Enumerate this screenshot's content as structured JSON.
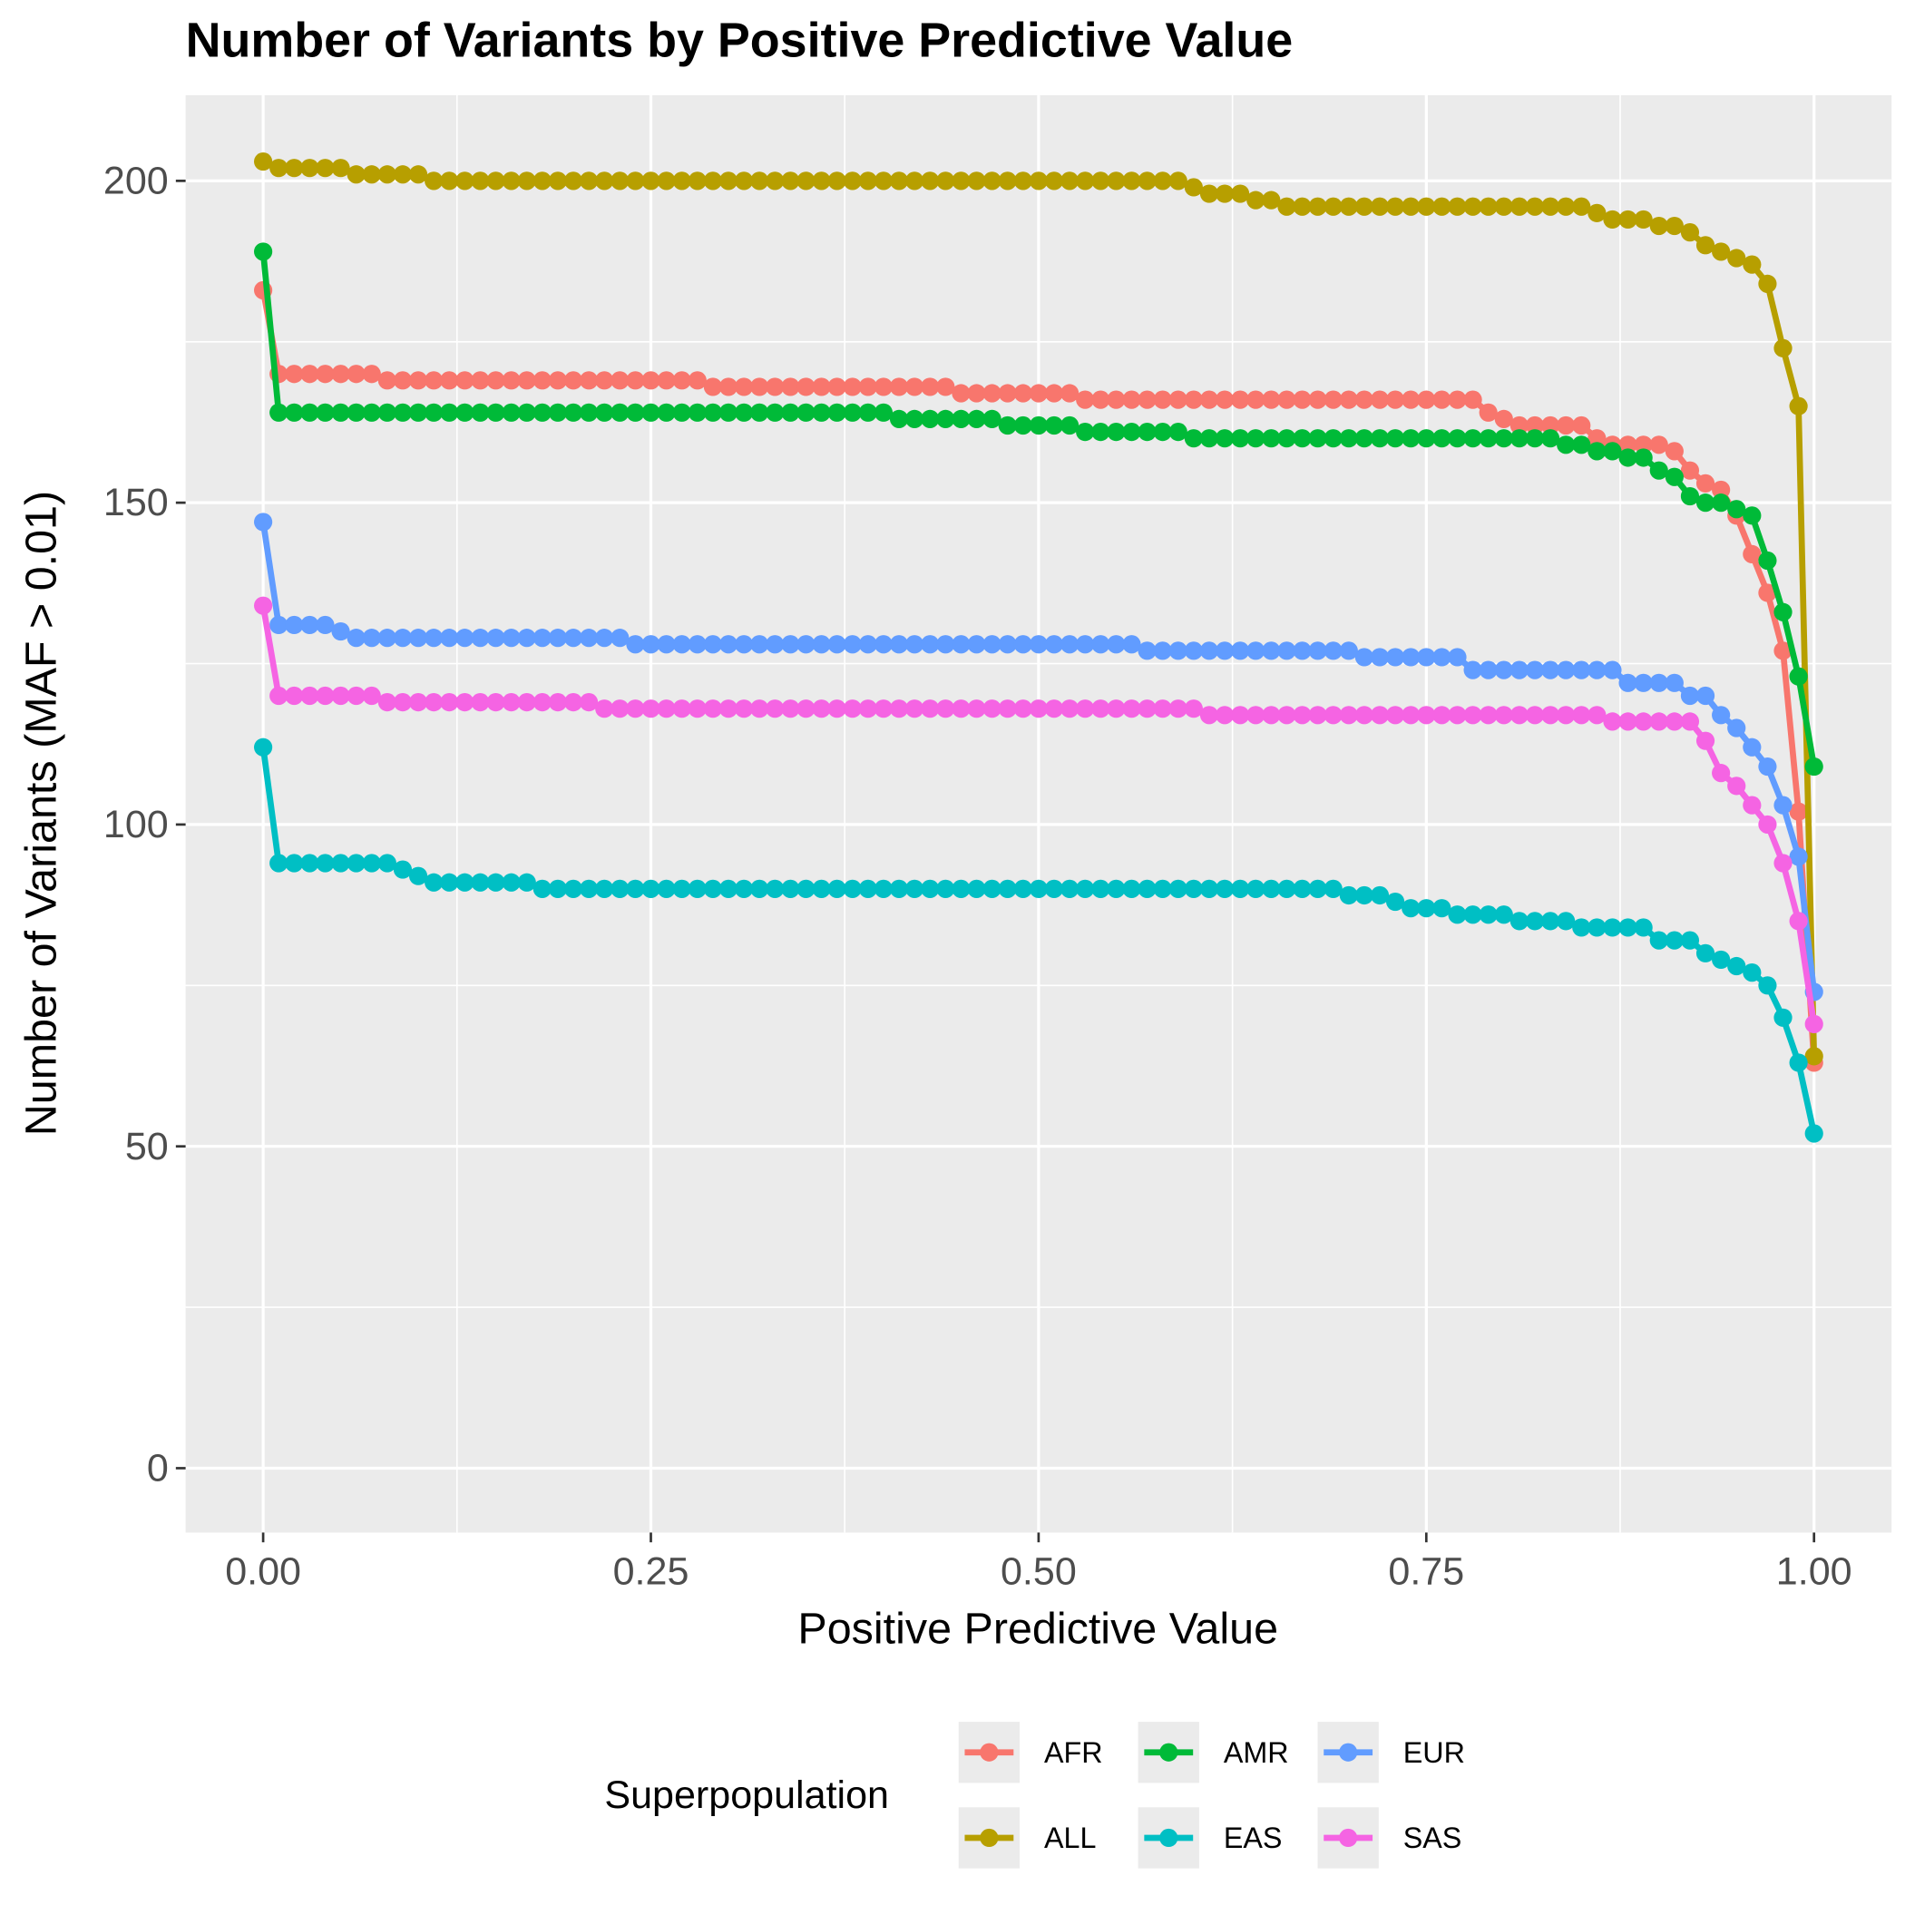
{
  "chart_data": {
    "type": "line",
    "title": "Number of Variants by Positive Predictive Value",
    "x_label": "Positive Predictive Value",
    "y_label": "Number of Variants (MAF > 0.01)",
    "legend_title": "Superpopulation",
    "legend_position": "bottom",
    "grid": true,
    "xlim": [
      -0.05,
      1.05
    ],
    "ylim": [
      -10,
      213.3
    ],
    "xticks": [
      {
        "value": 0,
        "label": "0.00"
      },
      {
        "value": 0.25,
        "label": "0.25"
      },
      {
        "value": 0.5,
        "label": "0.50"
      },
      {
        "value": 0.75,
        "label": "0.75"
      },
      {
        "value": 1,
        "label": "1.00"
      }
    ],
    "yticks": [
      0,
      50,
      100,
      150,
      200
    ],
    "x": [
      0,
      0.01,
      0.02,
      0.03,
      0.04,
      0.05,
      0.06,
      0.07,
      0.08,
      0.09,
      0.1,
      0.11,
      0.12,
      0.13,
      0.14,
      0.15,
      0.16,
      0.17,
      0.18,
      0.19,
      0.2,
      0.21,
      0.22,
      0.23,
      0.24,
      0.25,
      0.26,
      0.27,
      0.28,
      0.29,
      0.3,
      0.31,
      0.32,
      0.33,
      0.34,
      0.35,
      0.36,
      0.37,
      0.38,
      0.39,
      0.4,
      0.41,
      0.42,
      0.43,
      0.44,
      0.45,
      0.46,
      0.47,
      0.48,
      0.49,
      0.5,
      0.51,
      0.52,
      0.53,
      0.54,
      0.55,
      0.56,
      0.57,
      0.58,
      0.59,
      0.6,
      0.61,
      0.62,
      0.63,
      0.64,
      0.65,
      0.66,
      0.67,
      0.68,
      0.69,
      0.7,
      0.71,
      0.72,
      0.73,
      0.74,
      0.75,
      0.76,
      0.77,
      0.78,
      0.79,
      0.8,
      0.81,
      0.82,
      0.83,
      0.84,
      0.85,
      0.86,
      0.87,
      0.88,
      0.89,
      0.9,
      0.91,
      0.92,
      0.93,
      0.94,
      0.95,
      0.96,
      0.97,
      0.98,
      0.99,
      1
    ],
    "series": [
      {
        "name": "AFR",
        "color": "#F8766D",
        "values": [
          183,
          170,
          170,
          170,
          170,
          170,
          170,
          170,
          169,
          169,
          169,
          169,
          169,
          169,
          169,
          169,
          169,
          169,
          169,
          169,
          169,
          169,
          169,
          169,
          169,
          169,
          169,
          169,
          169,
          168,
          168,
          168,
          168,
          168,
          168,
          168,
          168,
          168,
          168,
          168,
          168,
          168,
          168,
          168,
          168,
          167,
          167,
          167,
          167,
          167,
          167,
          167,
          167,
          166,
          166,
          166,
          166,
          166,
          166,
          166,
          166,
          166,
          166,
          166,
          166,
          166,
          166,
          166,
          166,
          166,
          166,
          166,
          166,
          166,
          166,
          166,
          166,
          166,
          166,
          164,
          163,
          162,
          162,
          162,
          162,
          162,
          160,
          159,
          159,
          159,
          159,
          158,
          155,
          153,
          152,
          148,
          142,
          136,
          127,
          102,
          63
        ]
      },
      {
        "name": "ALL",
        "color": "#B79F00",
        "values": [
          203,
          202,
          202,
          202,
          202,
          202,
          201,
          201,
          201,
          201,
          201,
          200,
          200,
          200,
          200,
          200,
          200,
          200,
          200,
          200,
          200,
          200,
          200,
          200,
          200,
          200,
          200,
          200,
          200,
          200,
          200,
          200,
          200,
          200,
          200,
          200,
          200,
          200,
          200,
          200,
          200,
          200,
          200,
          200,
          200,
          200,
          200,
          200,
          200,
          200,
          200,
          200,
          200,
          200,
          200,
          200,
          200,
          200,
          200,
          200,
          199,
          198,
          198,
          198,
          197,
          197,
          196,
          196,
          196,
          196,
          196,
          196,
          196,
          196,
          196,
          196,
          196,
          196,
          196,
          196,
          196,
          196,
          196,
          196,
          196,
          196,
          195,
          194,
          194,
          194,
          193,
          193,
          192,
          190,
          189,
          188,
          187,
          184,
          174,
          165,
          64
        ]
      },
      {
        "name": "AMR",
        "color": "#00BA38",
        "values": [
          189,
          164,
          164,
          164,
          164,
          164,
          164,
          164,
          164,
          164,
          164,
          164,
          164,
          164,
          164,
          164,
          164,
          164,
          164,
          164,
          164,
          164,
          164,
          164,
          164,
          164,
          164,
          164,
          164,
          164,
          164,
          164,
          164,
          164,
          164,
          164,
          164,
          164,
          164,
          164,
          164,
          163,
          163,
          163,
          163,
          163,
          163,
          163,
          162,
          162,
          162,
          162,
          162,
          161,
          161,
          161,
          161,
          161,
          161,
          161,
          160,
          160,
          160,
          160,
          160,
          160,
          160,
          160,
          160,
          160,
          160,
          160,
          160,
          160,
          160,
          160,
          160,
          160,
          160,
          160,
          160,
          160,
          160,
          160,
          159,
          159,
          158,
          158,
          157,
          157,
          155,
          154,
          151,
          150,
          150,
          149,
          148,
          141,
          133,
          123,
          109
        ]
      },
      {
        "name": "EAS",
        "color": "#00BFC4",
        "values": [
          112,
          94,
          94,
          94,
          94,
          94,
          94,
          94,
          94,
          93,
          92,
          91,
          91,
          91,
          91,
          91,
          91,
          91,
          90,
          90,
          90,
          90,
          90,
          90,
          90,
          90,
          90,
          90,
          90,
          90,
          90,
          90,
          90,
          90,
          90,
          90,
          90,
          90,
          90,
          90,
          90,
          90,
          90,
          90,
          90,
          90,
          90,
          90,
          90,
          90,
          90,
          90,
          90,
          90,
          90,
          90,
          90,
          90,
          90,
          90,
          90,
          90,
          90,
          90,
          90,
          90,
          90,
          90,
          90,
          90,
          89,
          89,
          89,
          88,
          87,
          87,
          87,
          86,
          86,
          86,
          86,
          85,
          85,
          85,
          85,
          84,
          84,
          84,
          84,
          84,
          82,
          82,
          82,
          80,
          79,
          78,
          77,
          75,
          70,
          63,
          52
        ]
      },
      {
        "name": "EUR",
        "color": "#619CFF",
        "values": [
          147,
          131,
          131,
          131,
          131,
          130,
          129,
          129,
          129,
          129,
          129,
          129,
          129,
          129,
          129,
          129,
          129,
          129,
          129,
          129,
          129,
          129,
          129,
          129,
          128,
          128,
          128,
          128,
          128,
          128,
          128,
          128,
          128,
          128,
          128,
          128,
          128,
          128,
          128,
          128,
          128,
          128,
          128,
          128,
          128,
          128,
          128,
          128,
          128,
          128,
          128,
          128,
          128,
          128,
          128,
          128,
          128,
          127,
          127,
          127,
          127,
          127,
          127,
          127,
          127,
          127,
          127,
          127,
          127,
          127,
          127,
          126,
          126,
          126,
          126,
          126,
          126,
          126,
          124,
          124,
          124,
          124,
          124,
          124,
          124,
          124,
          124,
          124,
          122,
          122,
          122,
          122,
          120,
          120,
          117,
          115,
          112,
          109,
          103,
          95,
          74
        ]
      },
      {
        "name": "SAS",
        "color": "#F564E3",
        "values": [
          134,
          120,
          120,
          120,
          120,
          120,
          120,
          120,
          119,
          119,
          119,
          119,
          119,
          119,
          119,
          119,
          119,
          119,
          119,
          119,
          119,
          119,
          118,
          118,
          118,
          118,
          118,
          118,
          118,
          118,
          118,
          118,
          118,
          118,
          118,
          118,
          118,
          118,
          118,
          118,
          118,
          118,
          118,
          118,
          118,
          118,
          118,
          118,
          118,
          118,
          118,
          118,
          118,
          118,
          118,
          118,
          118,
          118,
          118,
          118,
          118,
          117,
          117,
          117,
          117,
          117,
          117,
          117,
          117,
          117,
          117,
          117,
          117,
          117,
          117,
          117,
          117,
          117,
          117,
          117,
          117,
          117,
          117,
          117,
          117,
          117,
          117,
          116,
          116,
          116,
          116,
          116,
          116,
          113,
          108,
          106,
          103,
          100,
          94,
          85,
          69
        ]
      }
    ]
  }
}
